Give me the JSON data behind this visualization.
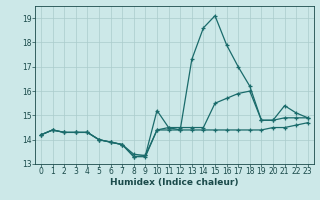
{
  "xlabel": "Humidex (Indice chaleur)",
  "bg_color": "#cce8e8",
  "grid_color": "#aacccc",
  "line_color": "#1a6b6b",
  "xlim": [
    -0.5,
    23.5
  ],
  "ylim": [
    13.0,
    19.5
  ],
  "yticks": [
    13,
    14,
    15,
    16,
    17,
    18,
    19
  ],
  "xticks": [
    0,
    1,
    2,
    3,
    4,
    5,
    6,
    7,
    8,
    9,
    10,
    11,
    12,
    13,
    14,
    15,
    16,
    17,
    18,
    19,
    20,
    21,
    22,
    23
  ],
  "series1_y": [
    14.2,
    14.4,
    14.3,
    14.3,
    14.3,
    14.0,
    13.9,
    13.8,
    13.3,
    13.3,
    14.4,
    14.4,
    14.4,
    14.4,
    14.4,
    14.4,
    14.4,
    14.4,
    14.4,
    14.4,
    14.5,
    14.5,
    14.6,
    14.7
  ],
  "series2_y": [
    14.2,
    14.4,
    14.3,
    14.3,
    14.3,
    14.0,
    13.9,
    13.8,
    13.3,
    13.35,
    15.2,
    14.5,
    14.4,
    17.3,
    18.6,
    19.1,
    17.9,
    17.0,
    16.2,
    14.8,
    14.8,
    15.4,
    15.1,
    14.9
  ],
  "series3_y": [
    14.2,
    14.4,
    14.3,
    14.3,
    14.3,
    14.0,
    13.9,
    13.8,
    13.4,
    13.35,
    14.4,
    14.5,
    14.5,
    14.5,
    14.5,
    15.5,
    15.7,
    15.9,
    16.0,
    14.8,
    14.8,
    14.9,
    14.9,
    14.9
  ],
  "tick_fontsize": 5.5,
  "xlabel_fontsize": 6.5
}
